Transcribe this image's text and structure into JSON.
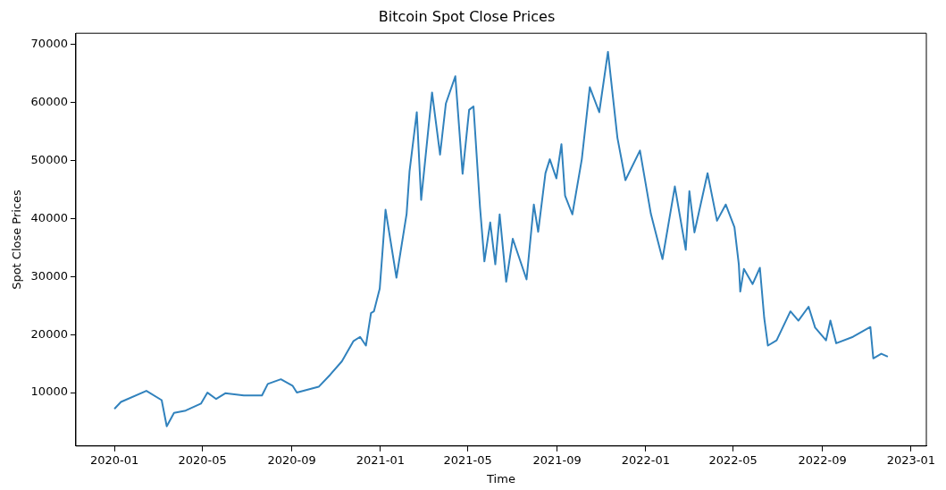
{
  "chart_data": {
    "type": "line",
    "title": "Bitcoin Spot Close Prices",
    "xlabel": "Time",
    "ylabel": "Spot Close Prices",
    "grid": false,
    "legend": false,
    "marker": "none",
    "line_style": "solid",
    "xlim": [
      "2019-11-09",
      "2023-01-22"
    ],
    "ylim": [
      800,
      71900
    ],
    "xticks": [
      "2020-01",
      "2020-05",
      "2020-09",
      "2021-01",
      "2021-05",
      "2021-09",
      "2022-01",
      "2022-05",
      "2022-09",
      "2023-01"
    ],
    "yticks": [
      10000,
      20000,
      30000,
      40000,
      50000,
      60000,
      70000
    ],
    "series": [
      {
        "color": "#3182bd",
        "x": [
          "2020-01-01",
          "2020-01-10",
          "2020-02-14",
          "2020-03-06",
          "2020-03-13",
          "2020-03-23",
          "2020-04-08",
          "2020-04-29",
          "2020-05-08",
          "2020-05-20",
          "2020-06-02",
          "2020-06-27",
          "2020-07-22",
          "2020-07-30",
          "2020-08-17",
          "2020-09-02",
          "2020-09-08",
          "2020-10-08",
          "2020-10-24",
          "2020-11-09",
          "2020-11-25",
          "2020-12-04",
          "2020-12-12",
          "2020-12-19",
          "2020-12-23",
          "2020-12-31",
          "2021-01-04",
          "2021-01-08",
          "2021-01-23",
          "2021-02-06",
          "2021-02-10",
          "2021-02-20",
          "2021-02-26",
          "2021-03-13",
          "2021-03-24",
          "2021-04-01",
          "2021-04-14",
          "2021-04-24",
          "2021-05-03",
          "2021-05-09",
          "2021-05-18",
          "2021-05-24",
          "2021-06-01",
          "2021-06-08",
          "2021-06-14",
          "2021-06-23",
          "2021-07-02",
          "2021-07-21",
          "2021-07-31",
          "2021-08-06",
          "2021-08-16",
          "2021-08-22",
          "2021-08-31",
          "2021-09-07",
          "2021-09-12",
          "2021-09-22",
          "2021-10-05",
          "2021-10-16",
          "2021-10-29",
          "2021-11-10",
          "2021-11-23",
          "2021-12-04",
          "2021-12-24",
          "2022-01-08",
          "2022-01-24",
          "2022-02-10",
          "2022-02-25",
          "2022-03-02",
          "2022-03-09",
          "2022-03-27",
          "2022-04-09",
          "2022-04-21",
          "2022-05-03",
          "2022-05-09",
          "2022-05-11",
          "2022-05-16",
          "2022-05-28",
          "2022-06-07",
          "2022-06-13",
          "2022-06-18",
          "2022-06-30",
          "2022-07-19",
          "2022-07-30",
          "2022-08-13",
          "2022-08-22",
          "2022-09-06",
          "2022-09-12",
          "2022-09-20",
          "2022-10-13",
          "2022-11-06",
          "2022-11-10",
          "2022-11-21",
          "2022-11-30"
        ],
        "values": [
          7200,
          8400,
          10300,
          8700,
          4200,
          6500,
          6900,
          8100,
          10000,
          8900,
          9900,
          9500,
          9500,
          11500,
          12300,
          11200,
          10000,
          11000,
          13100,
          15400,
          18900,
          19600,
          18100,
          23700,
          24000,
          27900,
          34600,
          41500,
          29800,
          40800,
          48100,
          58300,
          43200,
          61700,
          51000,
          59800,
          64500,
          47700,
          58700,
          59300,
          41900,
          32600,
          39300,
          32100,
          40700,
          29100,
          36500,
          29500,
          42400,
          37700,
          47800,
          50200,
          46900,
          52800,
          43900,
          40700,
          50200,
          62600,
          58300,
          68700,
          53900,
          46600,
          51700,
          40800,
          33000,
          45500,
          34600,
          44700,
          37600,
          47800,
          39600,
          42400,
          38500,
          32100,
          27400,
          31300,
          28700,
          31500,
          22800,
          18100,
          19000,
          24000,
          22400,
          24800,
          21200,
          19000,
          22400,
          18500,
          19600,
          21300,
          15900,
          16700,
          16200
        ]
      }
    ]
  }
}
